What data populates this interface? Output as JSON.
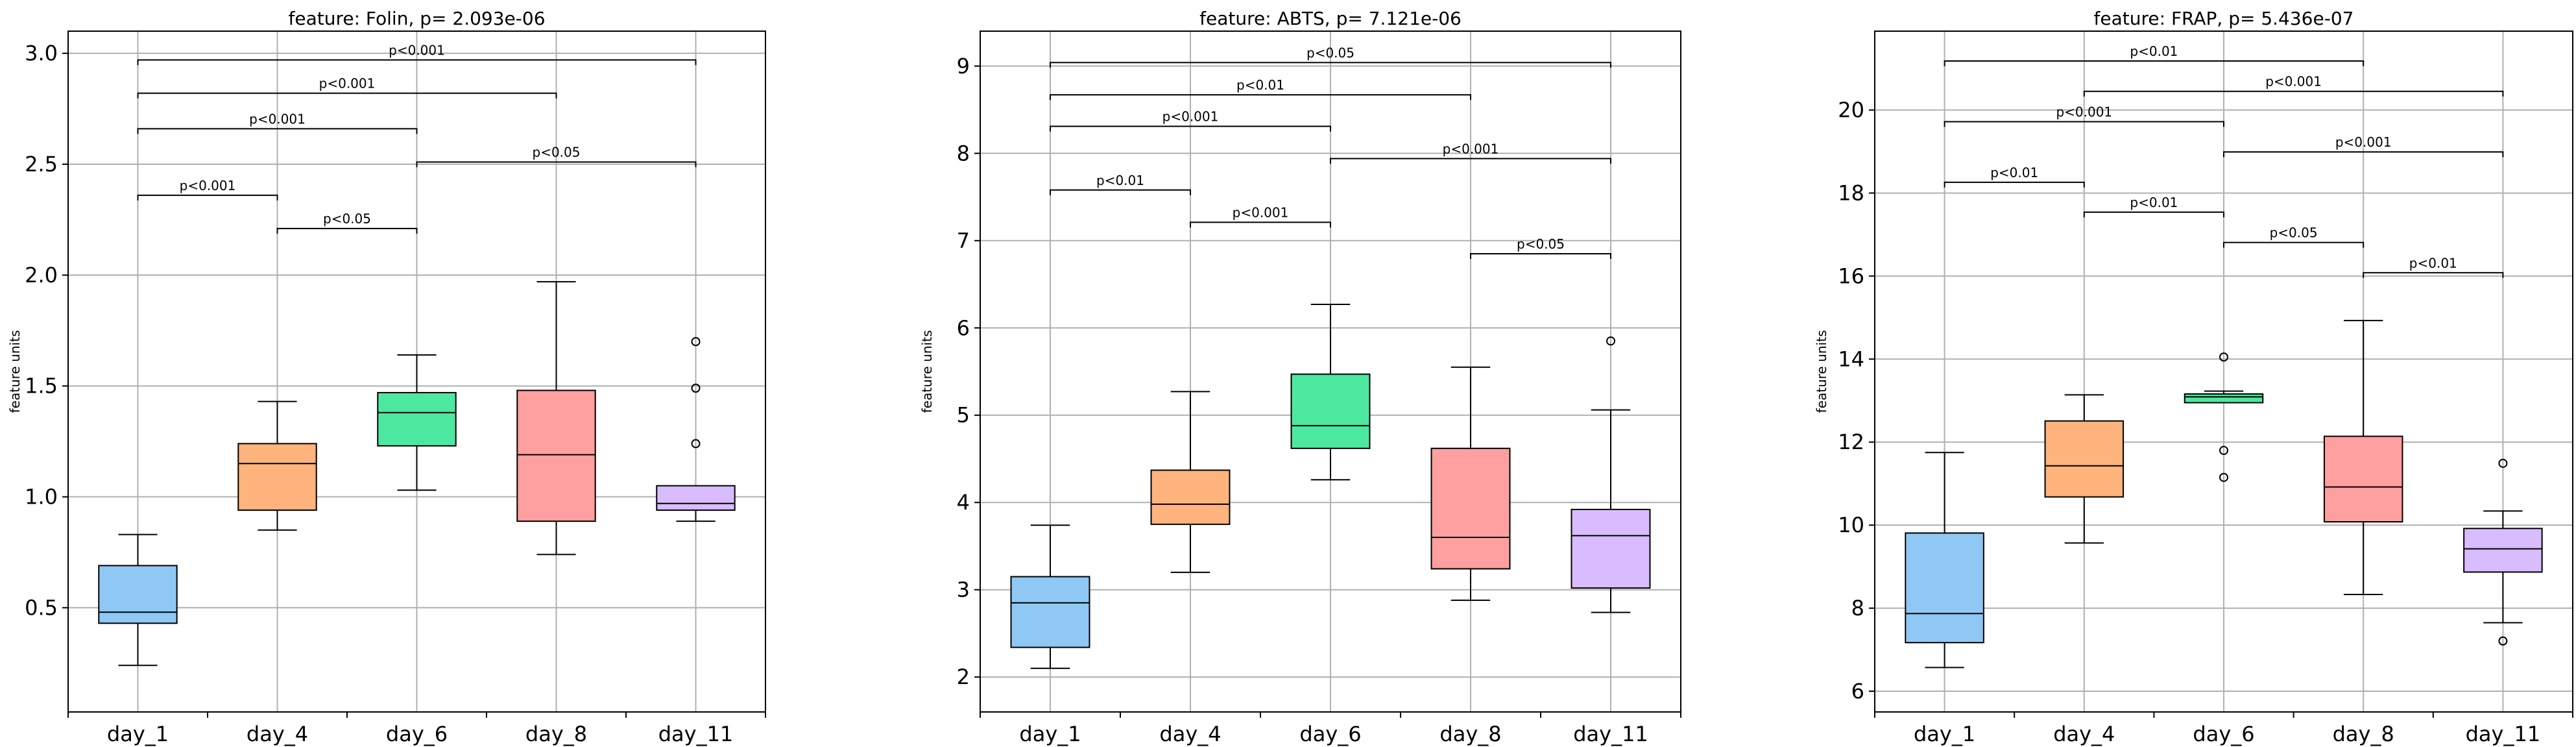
{
  "colors": [
    "#8fc8f4",
    "#ffb37d",
    "#4ce8a0",
    "#ff9f9f",
    "#d9bcff"
  ],
  "chart_data": [
    {
      "type": "box",
      "title": "feature: Folin, p= 2.093e-06",
      "ylabel": "feature units",
      "xlabel": "",
      "categories": [
        "day_1",
        "day_4",
        "day_6",
        "day_8",
        "day_11"
      ],
      "ylim": [
        0.03,
        3.1
      ],
      "yticks": [
        0.5,
        1.0,
        1.5,
        2.0,
        2.5,
        3.0
      ],
      "ytick_labels": [
        "0.5",
        "1.0",
        "1.5",
        "2.0",
        "2.5",
        "3.0"
      ],
      "grid": true,
      "boxes": [
        {
          "whislo": 0.24,
          "q1": 0.43,
          "med": 0.48,
          "q3": 0.69,
          "whishi": 0.83,
          "fliers": []
        },
        {
          "whislo": 0.85,
          "q1": 0.94,
          "med": 1.15,
          "q3": 1.24,
          "whishi": 1.43,
          "fliers": []
        },
        {
          "whislo": 1.03,
          "q1": 1.23,
          "med": 1.38,
          "q3": 1.47,
          "whishi": 1.64,
          "fliers": []
        },
        {
          "whislo": 0.74,
          "q1": 0.89,
          "med": 1.19,
          "q3": 1.48,
          "whishi": 1.97,
          "fliers": []
        },
        {
          "whislo": 0.89,
          "q1": 0.94,
          "med": 0.97,
          "q3": 1.05,
          "whishi": 1.05,
          "fliers": [
            1.24,
            1.49,
            1.7
          ]
        }
      ],
      "annotations": [
        {
          "from": 0,
          "to": 1,
          "y": 2.36,
          "label": "p<0.001"
        },
        {
          "from": 1,
          "to": 2,
          "y": 2.21,
          "label": "p<0.05"
        },
        {
          "from": 0,
          "to": 2,
          "y": 2.66,
          "label": "p<0.001"
        },
        {
          "from": 2,
          "to": 4,
          "y": 2.51,
          "label": "p<0.05"
        },
        {
          "from": 0,
          "to": 3,
          "y": 2.82,
          "label": "p<0.001"
        },
        {
          "from": 0,
          "to": 4,
          "y": 2.97,
          "label": "p<0.001"
        }
      ]
    },
    {
      "type": "box",
      "title": "feature: ABTS, p= 7.121e-06",
      "ylabel": "feature units",
      "xlabel": "",
      "categories": [
        "day_1",
        "day_4",
        "day_6",
        "day_8",
        "day_11"
      ],
      "ylim": [
        1.6,
        9.4
      ],
      "yticks": [
        2,
        3,
        4,
        5,
        6,
        7,
        8,
        9
      ],
      "ytick_labels": [
        "2",
        "3",
        "4",
        "5",
        "6",
        "7",
        "8",
        "9"
      ],
      "grid": true,
      "boxes": [
        {
          "whislo": 2.1,
          "q1": 2.34,
          "med": 2.85,
          "q3": 3.15,
          "whishi": 3.74,
          "fliers": []
        },
        {
          "whislo": 3.2,
          "q1": 3.75,
          "med": 3.98,
          "q3": 4.37,
          "whishi": 5.27,
          "fliers": []
        },
        {
          "whislo": 4.26,
          "q1": 4.62,
          "med": 4.88,
          "q3": 5.47,
          "whishi": 6.27,
          "fliers": []
        },
        {
          "whislo": 2.88,
          "q1": 3.24,
          "med": 3.6,
          "q3": 4.62,
          "whishi": 5.55,
          "fliers": []
        },
        {
          "whislo": 2.74,
          "q1": 3.02,
          "med": 3.62,
          "q3": 3.92,
          "whishi": 5.06,
          "fliers": [
            5.85
          ]
        }
      ],
      "annotations": [
        {
          "from": 3,
          "to": 4,
          "y": 6.85,
          "label": "p<0.05"
        },
        {
          "from": 1,
          "to": 2,
          "y": 7.21,
          "label": "p<0.001"
        },
        {
          "from": 0,
          "to": 1,
          "y": 7.58,
          "label": "p<0.01"
        },
        {
          "from": 2,
          "to": 4,
          "y": 7.94,
          "label": "p<0.001"
        },
        {
          "from": 0,
          "to": 2,
          "y": 8.31,
          "label": "p<0.001"
        },
        {
          "from": 0,
          "to": 3,
          "y": 8.67,
          "label": "p<0.01"
        },
        {
          "from": 0,
          "to": 4,
          "y": 9.04,
          "label": "p<0.05"
        }
      ]
    },
    {
      "type": "box",
      "title": "feature: FRAP, p= 5.436e-07",
      "ylabel": "feature units",
      "xlabel": "",
      "categories": [
        "day_1",
        "day_4",
        "day_6",
        "day_8",
        "day_11"
      ],
      "ylim": [
        5.5,
        21.9
      ],
      "yticks": [
        6,
        8,
        10,
        12,
        14,
        16,
        18,
        20
      ],
      "ytick_labels": [
        "6",
        "8",
        "10",
        "12",
        "14",
        "16",
        "18",
        "20"
      ],
      "grid": true,
      "boxes": [
        {
          "whislo": 6.57,
          "q1": 7.17,
          "med": 7.87,
          "q3": 9.81,
          "whishi": 11.75,
          "fliers": []
        },
        {
          "whislo": 9.57,
          "q1": 10.68,
          "med": 11.43,
          "q3": 12.51,
          "whishi": 13.14,
          "fliers": []
        },
        {
          "whislo": 12.95,
          "q1": 12.95,
          "med": 13.09,
          "q3": 13.16,
          "whishi": 13.23,
          "fliers": [
            11.15,
            11.8,
            14.05
          ]
        },
        {
          "whislo": 8.33,
          "q1": 10.08,
          "med": 10.92,
          "q3": 12.14,
          "whishi": 14.93,
          "fliers": []
        },
        {
          "whislo": 7.65,
          "q1": 8.87,
          "med": 9.43,
          "q3": 9.92,
          "whishi": 10.34,
          "fliers": [
            7.21,
            11.49
          ]
        }
      ],
      "annotations": [
        {
          "from": 3,
          "to": 4,
          "y": 16.08,
          "label": "p<0.01"
        },
        {
          "from": 2,
          "to": 3,
          "y": 16.81,
          "label": "p<0.05"
        },
        {
          "from": 1,
          "to": 2,
          "y": 17.54,
          "label": "p<0.01"
        },
        {
          "from": 0,
          "to": 1,
          "y": 18.26,
          "label": "p<0.01"
        },
        {
          "from": 2,
          "to": 4,
          "y": 18.99,
          "label": "p<0.001"
        },
        {
          "from": 0,
          "to": 2,
          "y": 19.72,
          "label": "p<0.001"
        },
        {
          "from": 1,
          "to": 4,
          "y": 20.45,
          "label": "p<0.001"
        },
        {
          "from": 0,
          "to": 3,
          "y": 21.18,
          "label": "p<0.01"
        }
      ]
    }
  ]
}
